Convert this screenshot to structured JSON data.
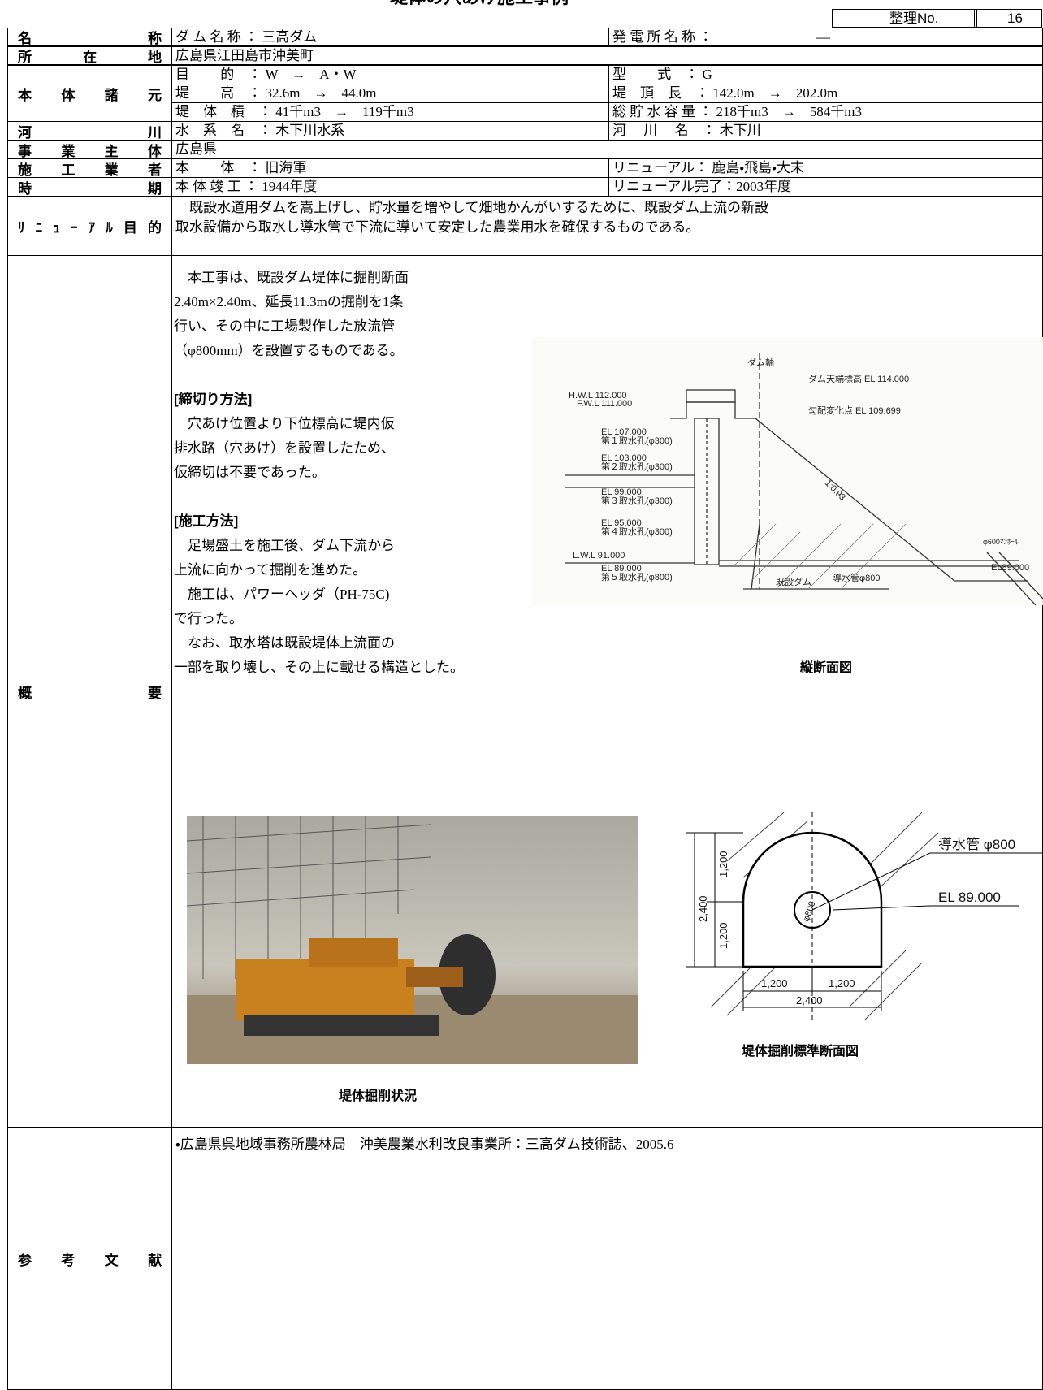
{
  "header": {
    "title": "堤体の穴あけ施工事例",
    "no_label": "整理No.",
    "no_value": "16"
  },
  "rows": {
    "name": {
      "label": "名称",
      "left": "ダ ム 名 称 ： 三高ダム",
      "right": "発 電 所 名 称 ：",
      "right_value": "―"
    },
    "location": {
      "label": "所在地",
      "value": "広島県江田島市沖美町"
    },
    "specs": {
      "label": "本体諸元",
      "lines": [
        {
          "left": "目　　 的　： W　→　A・W",
          "right": "型　　 式　： G"
        },
        {
          "left": "堤　　 高　： 32.6m　→　44.0m",
          "right": "堤　頂　長　： 142.0m　→　202.0m"
        },
        {
          "left": "堤　体　積　： 41千m3　→　119千m3",
          "right": "総 貯 水 容 量 ： 218千m3　→　584千m3"
        }
      ]
    },
    "river": {
      "label": "河川",
      "left": "水　系　名　： 木下川水系",
      "right": "河　 川　 名　： 木下川"
    },
    "owner": {
      "label": "事業主体",
      "value": "広島県"
    },
    "contractor": {
      "label": "施工業者",
      "left": "本　　 体　： 旧海軍",
      "right": "リニューアル： 鹿島・飛島・大末"
    },
    "period": {
      "label": "時期",
      "left": "本 体 竣 工 ： 1944年度",
      "right": "リニューアル完了：2003年度"
    },
    "purpose": {
      "label": "ﾘﾆｭｰｱﾙ目的",
      "lines": [
        "　既設水道用ダムを嵩上げし、貯水量を増やして畑地かんがいするために、既設ダム上流の新設",
        "取水設備から取水し導水管で下流に導いて安定した農業用水を確保するものである。"
      ]
    },
    "overview": {
      "label": "概要",
      "lines": [
        "　本工事は、既設ダム堤体に掘削断面",
        "2.40m×2.40m、延長11.3mの掘削を1条",
        "行い、その中に工場製作した放流管",
        "（φ800mm）を設置するものである。",
        "[締切り方法]",
        "　穴あけ位置より下位標高に堤内仮",
        "排水路（穴あけ）を設置したため、",
        "仮締切は不要であった。",
        "[施工方法]",
        "　足場盛土を施工後、ダム下流から",
        "上流に向かって掘削を進めた。",
        "　施工は、パワーヘッダ（PH-75C)",
        "で行った。",
        "　なお、取水塔は既設堤体上流面の",
        "一部を取り壊し、その上に載せる構造とした。"
      ],
      "figure1": {
        "caption": "縦断面図",
        "labels": [
          "ダム軸",
          "ダム天端標高 EL 114.000",
          "勾配変化点 EL 109.699",
          "H.W.L 112.000",
          "F.W.L 111.000",
          "EL 107.000",
          "第１取水孔(φ300)",
          "EL 103.000",
          "第２取水孔(φ300)",
          "EL 99.000",
          "第３取水孔(φ300)",
          "EL 95.000",
          "第４取水孔(φ300)",
          "L.W.L 91.000",
          "EL 89.000",
          "第５取水孔(φ800)",
          "1:0.93",
          "φ600ﾏﾝﾎｰﾙ",
          "EL89.000",
          "既設ダム",
          "導水管φ800"
        ]
      },
      "photo": {
        "caption": "堤体掘削状況"
      },
      "figure2": {
        "caption": "堤体掘削標準断面図",
        "labels": [
          "導水管 φ800",
          "EL 89.000",
          "φ800",
          "1,200",
          "1,200",
          "2,400",
          "1,200",
          "1,200",
          "2,400"
        ]
      }
    },
    "references": {
      "label": "参考文献",
      "value": "・広島県呉地域事務所農林局　沖美農業水利改良事業所：三高ダム技術誌、2005.6"
    }
  }
}
